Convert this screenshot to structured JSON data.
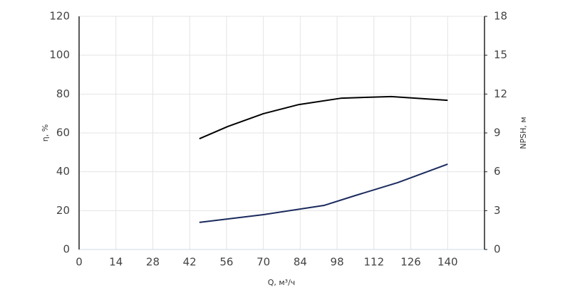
{
  "chart_data": {
    "type": "line",
    "x_label": "Q, м³/ч",
    "y_label": "η, %",
    "y2_label": "NPSH, м",
    "xlim": [
      0,
      154
    ],
    "xticks": [
      0,
      14,
      28,
      42,
      56,
      70,
      84,
      98,
      112,
      126,
      140
    ],
    "ylim": [
      0,
      120
    ],
    "yticks": [
      0,
      20,
      40,
      60,
      80,
      100,
      120
    ],
    "y2lim": [
      0,
      18
    ],
    "y2ticks": [
      0,
      3,
      6,
      9,
      12,
      15,
      18
    ],
    "grid": true,
    "series": [
      {
        "name": "η",
        "color": "#000000",
        "axis": "y",
        "x": [
          45.7,
          56.5,
          70,
          83.5,
          99.7,
          118.6,
          140
        ],
        "values": [
          57,
          63.3,
          69.9,
          74.6,
          77.9,
          78.7,
          76.8
        ]
      },
      {
        "name": "NPSH",
        "color": "#1a2a5e",
        "axis": "y2",
        "x": [
          45.7,
          70,
          93,
          105,
          121,
          140
        ],
        "values": [
          2.09,
          2.69,
          3.4,
          4.17,
          5.16,
          6.59
        ]
      }
    ]
  }
}
